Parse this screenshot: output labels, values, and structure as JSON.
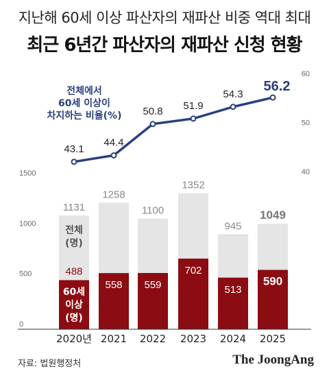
{
  "subtitle": "지난해 60세 이상 파산자의 재파산 비중 역대 최대",
  "title": "최근 6년간 파산자의 재파산 신청 현황",
  "source": "자료: 법원행정처",
  "brand": "The JoongAng",
  "colors": {
    "line": "#2b3f7c",
    "total_bar": "#e5e5e5",
    "senior_bar": "#8b0c12",
    "axis_text": "#666666"
  },
  "chart_data": [
    {
      "type": "line",
      "series_label": [
        "전체에서",
        "60세 이상이",
        "차지하는 비율(%)"
      ],
      "x": [
        "2020년",
        "2021",
        "2022",
        "2023",
        "2024",
        "2025"
      ],
      "values": [
        43.1,
        44.4,
        50.8,
        51.9,
        54.3,
        56.2
      ],
      "value_labels": [
        "43.1",
        "44.4",
        "50.8",
        "51.9",
        "54.3",
        "56.2"
      ],
      "y_ticks": [
        "60",
        "50",
        "40"
      ],
      "ylim": [
        40,
        60
      ],
      "axis_side": "right"
    },
    {
      "type": "bar",
      "categories": [
        "2020년",
        "2021",
        "2022",
        "2023",
        "2024",
        "2025"
      ],
      "series": [
        {
          "name_lines": [
            "전체",
            "(명)"
          ],
          "values": [
            1131,
            1258,
            1100,
            1352,
            945,
            1049
          ],
          "value_labels": [
            "1131",
            "1258",
            "1100",
            "1352",
            "945",
            "1049"
          ]
        },
        {
          "name_lines": [
            "60세",
            "이상",
            "(명)"
          ],
          "values": [
            488,
            558,
            559,
            702,
            513,
            590
          ],
          "value_labels": [
            "488",
            "558",
            "559",
            "702",
            "513",
            "590"
          ]
        }
      ],
      "y_ticks": [
        "1500",
        "1000",
        "500",
        "0"
      ],
      "ylim": [
        0,
        1500
      ],
      "axis_side": "left",
      "grid": false
    }
  ]
}
